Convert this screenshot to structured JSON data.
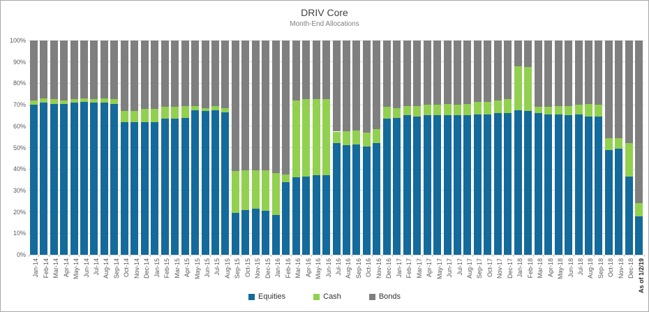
{
  "chart_data": {
    "type": "bar",
    "stacked": true,
    "title": "DRIV Core",
    "subtitle": "Month-End Allocations",
    "ylim": [
      0,
      100
    ],
    "grid": true,
    "legend_position": "bottom",
    "ytick_labels": [
      "0%",
      "10%",
      "20%",
      "30%",
      "40%",
      "50%",
      "60%",
      "70%",
      "80%",
      "90%",
      "100%"
    ],
    "categories": [
      "Jan-14",
      "Feb-14",
      "Mar-14",
      "Apr-14",
      "May-14",
      "Jun-14",
      "Jul-14",
      "Aug-14",
      "Sep-14",
      "Oct-14",
      "Nov-14",
      "Dec-14",
      "Jan-15",
      "Feb-15",
      "Mar-15",
      "Apr-15",
      "May-15",
      "Jun-15",
      "Jul-15",
      "Aug-15",
      "Sep-15",
      "Oct-15",
      "Nov-15",
      "Dec-15",
      "Jan-16",
      "Feb-16",
      "Mar-16",
      "Apr-16",
      "May-16",
      "Jun-16",
      "Jul-16",
      "Aug-16",
      "Sep-16",
      "Oct-16",
      "Nov-16",
      "Dec-16",
      "Jan-17",
      "Feb-17",
      "Mar-17",
      "Apr-17",
      "May-17",
      "Jun-17",
      "Jul-17",
      "Aug-17",
      "Sep-17",
      "Oct-17",
      "Nov-17",
      "Dec-17",
      "Jan-18",
      "Feb-18",
      "Mar-18",
      "Apr-18",
      "May-18",
      "Jun-18",
      "Jul-18",
      "Aug-18",
      "Sep-18",
      "Oct-18",
      "Nov-18",
      "Dec-18",
      "As of 1/2/19"
    ],
    "series": [
      {
        "name": "Equities",
        "color": "#146a9b",
        "values": [
          70,
          71,
          70.5,
          70.5,
          71,
          71.5,
          71,
          71,
          70.5,
          62,
          62,
          62,
          62,
          63.5,
          63.5,
          64,
          67.5,
          67,
          67.5,
          66.5,
          19.5,
          21,
          21.5,
          20.5,
          18.5,
          34,
          36,
          36.5,
          37,
          37,
          52,
          51,
          51.5,
          50.5,
          52,
          63.5,
          64,
          65,
          64.5,
          65,
          65,
          65,
          65,
          65,
          65.5,
          65.5,
          66,
          66,
          67.5,
          67,
          66,
          65.5,
          65.5,
          65,
          65.5,
          64.5,
          64.5,
          49,
          49.5,
          36.5,
          18
        ]
      },
      {
        "name": "Cash",
        "color": "#92d050",
        "values": [
          2,
          2,
          2,
          1.5,
          1.5,
          1.5,
          1.5,
          2,
          2,
          5,
          5,
          6,
          6,
          5.5,
          5.5,
          5.5,
          2,
          1.5,
          2,
          2,
          19.5,
          18.5,
          18,
          19,
          19.5,
          3.5,
          36,
          36,
          35.5,
          35.5,
          5.5,
          6.5,
          6.5,
          6.5,
          6.5,
          5.5,
          4.5,
          4.5,
          5,
          5,
          5,
          5.5,
          5,
          5.5,
          6,
          6,
          6,
          6.5,
          20.5,
          20.5,
          3,
          3.5,
          4,
          4.5,
          4.5,
          6,
          5.5,
          5.5,
          5,
          15.5,
          6
        ]
      },
      {
        "name": "Bonds",
        "color": "#7f7f7f",
        "values": [
          28,
          27,
          27.5,
          28,
          27.5,
          27,
          27.5,
          27,
          27.5,
          33,
          33,
          32,
          32,
          31,
          31,
          30.5,
          30.5,
          31.5,
          30.5,
          31.5,
          61,
          60.5,
          60.5,
          60.5,
          62,
          62.5,
          28,
          27.5,
          27.5,
          27.5,
          42.5,
          42.5,
          42,
          43,
          41.5,
          31,
          31.5,
          30.5,
          30.5,
          30,
          30,
          29.5,
          30,
          29.5,
          28.5,
          28.5,
          28,
          27.5,
          12,
          12.5,
          31,
          31,
          30.5,
          30.5,
          30,
          29.5,
          30,
          45.5,
          45.5,
          48,
          76
        ]
      }
    ],
    "colors": {
      "gridline": "#d9d9d9",
      "axis_text": "#595959",
      "title_text": "#404040",
      "subtitle_text": "#7f7f7f"
    }
  }
}
